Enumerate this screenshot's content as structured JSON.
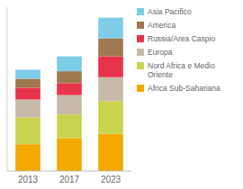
{
  "chart_data": {
    "type": "bar",
    "stacked": true,
    "categories": [
      "2013",
      "2017",
      "2023"
    ],
    "series": [
      {
        "name": "Africa Sub-Sahariana",
        "color": "#F5A800",
        "values": [
          18,
          22,
          25
        ]
      },
      {
        "name": "Nord Africa e Medio\nOriente",
        "color": "#C8D44E",
        "values": [
          18,
          16,
          22
        ]
      },
      {
        "name": "Europa",
        "color": "#C8BAA8",
        "values": [
          12,
          13,
          16
        ]
      },
      {
        "name": "Russia/Area Caspio",
        "color": "#E8344A",
        "values": [
          8,
          8,
          14
        ]
      },
      {
        "name": "America",
        "color": "#A07850",
        "values": [
          6,
          8,
          12
        ]
      },
      {
        "name": "Asia Pacifico",
        "color": "#7DCCE8",
        "values": [
          6,
          10,
          14
        ]
      }
    ],
    "ylim": [
      0,
      110
    ],
    "yticks": [],
    "grid": false,
    "legend": "upper right",
    "tick_labels": "x"
  }
}
